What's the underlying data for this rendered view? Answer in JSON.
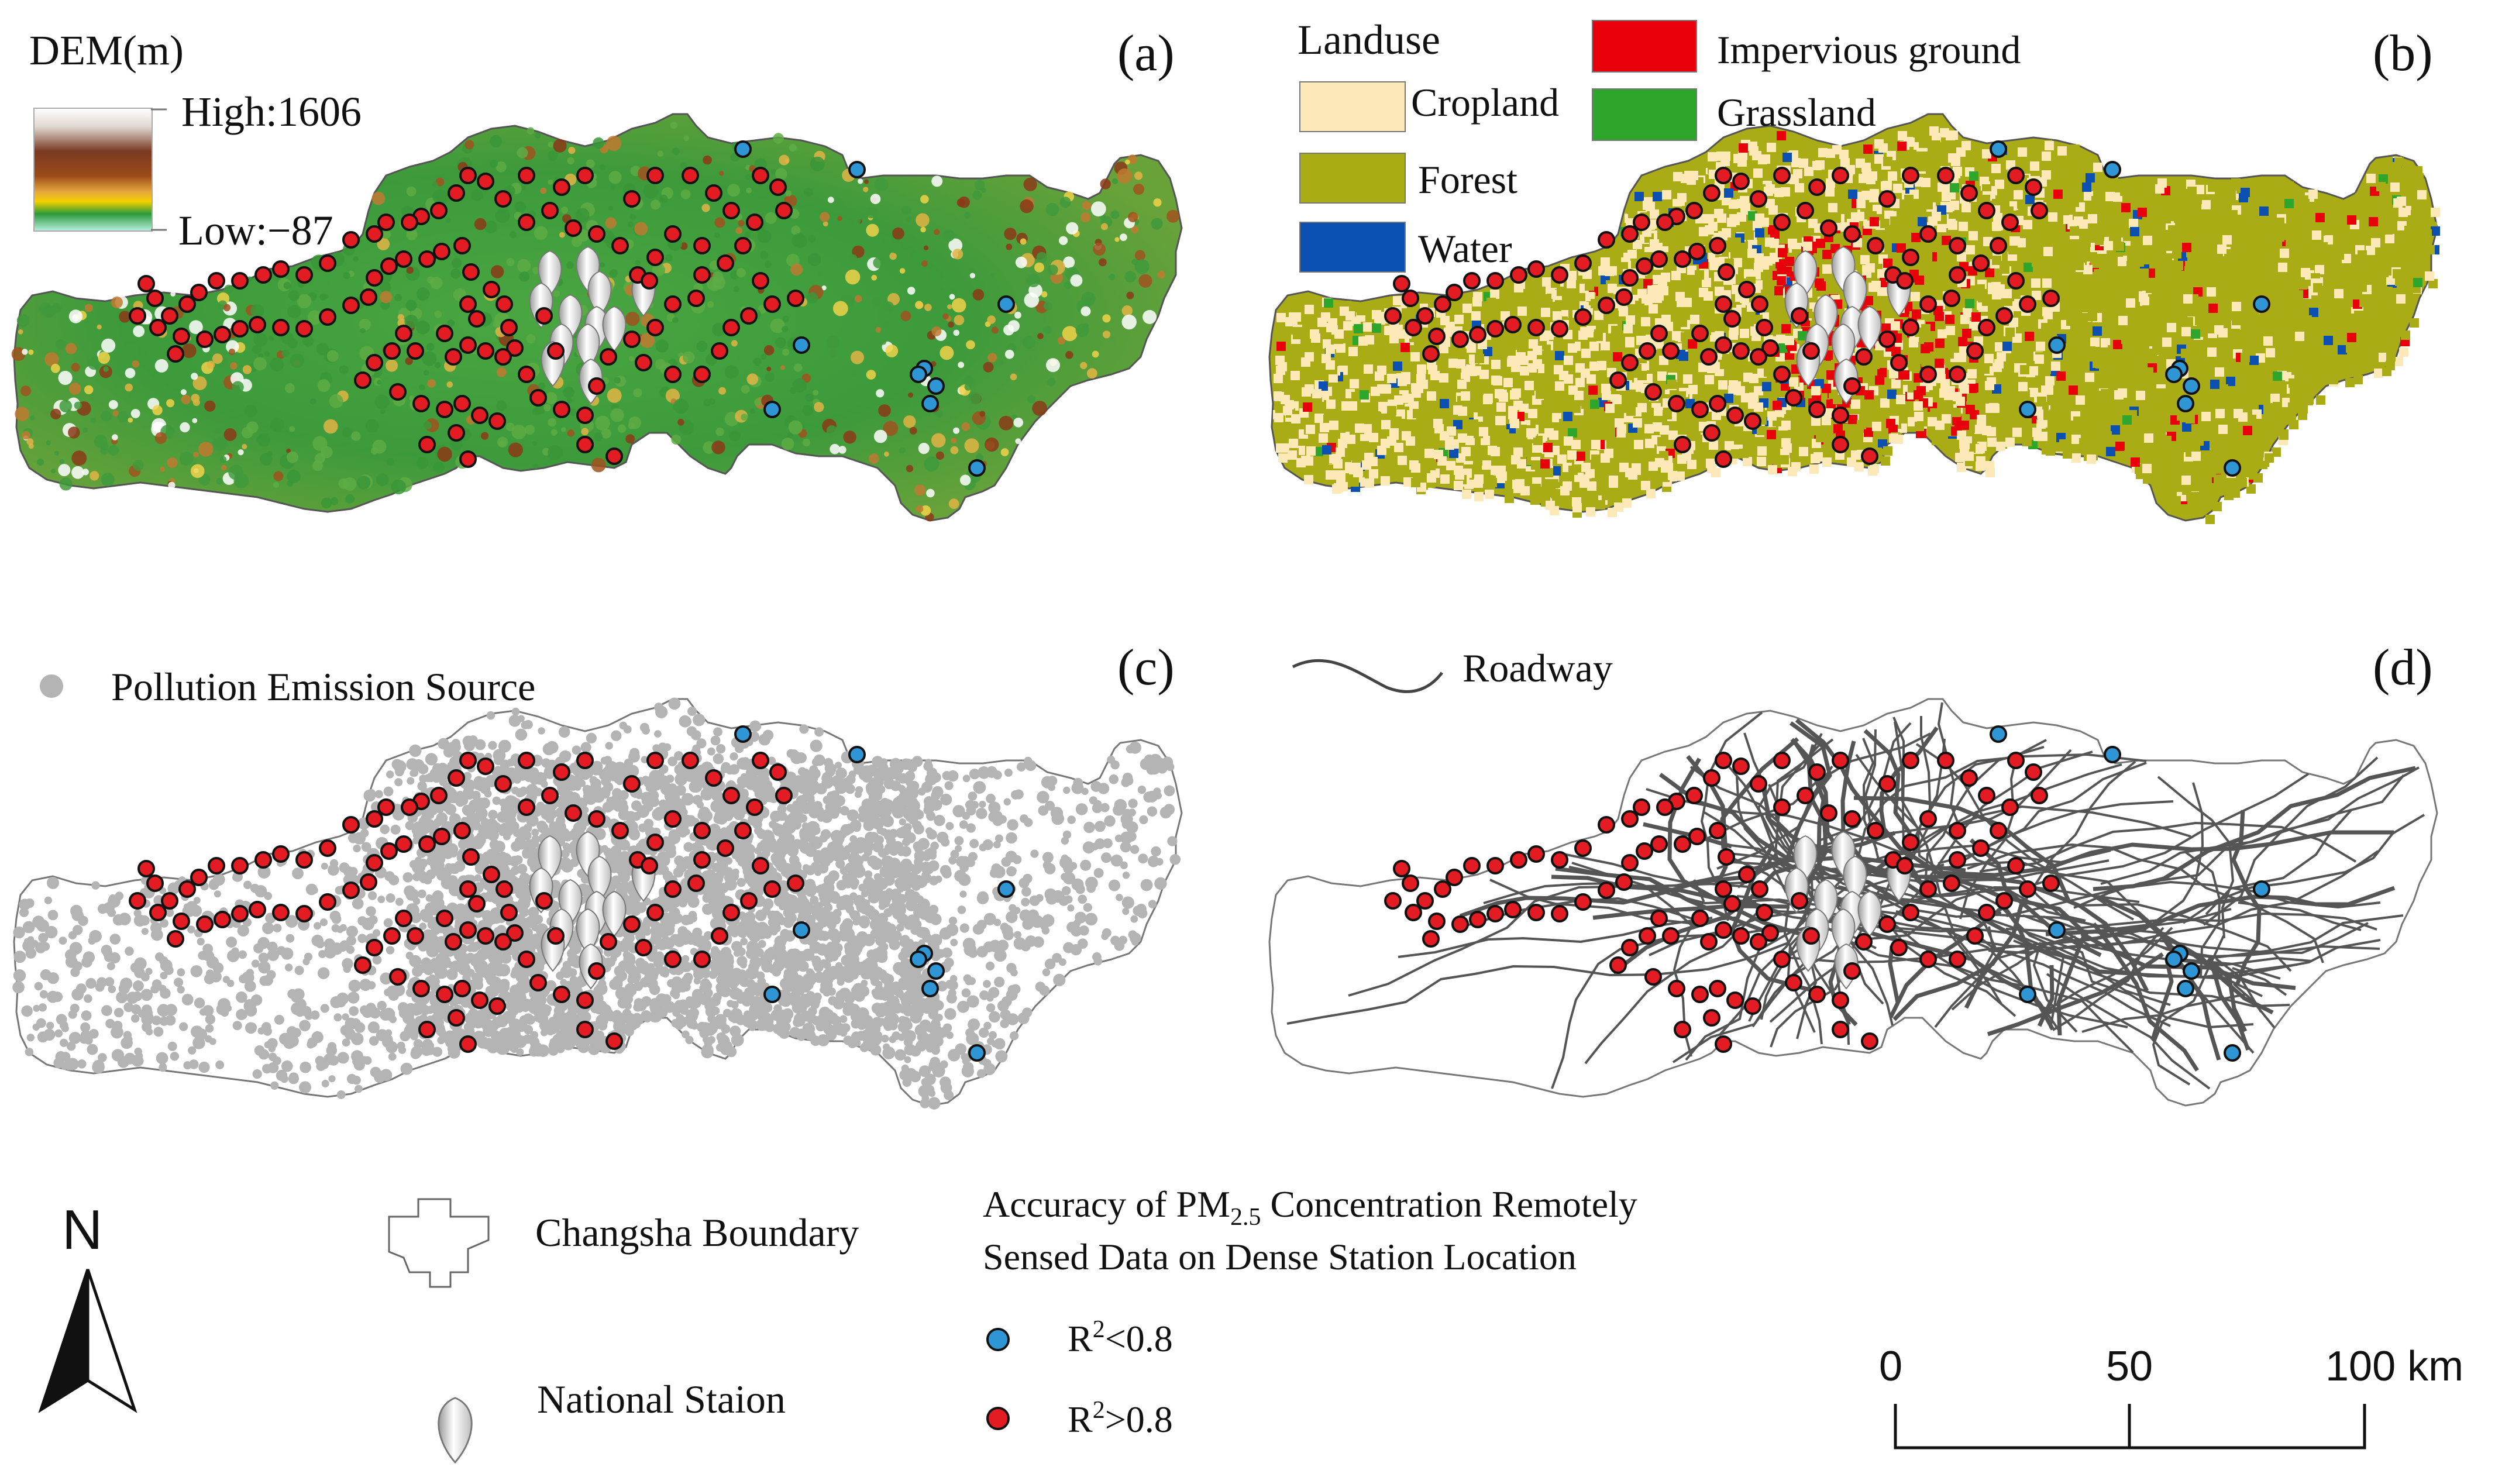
{
  "panels": {
    "a": {
      "label": "(a)",
      "legend_title": "DEM(m)",
      "high": "High:1606",
      "low": "Low:−87"
    },
    "b": {
      "label": "(b)",
      "legend_title": "Landuse",
      "classes": [
        {
          "name": "Cropland",
          "color": "#fde9b8"
        },
        {
          "name": "Forest",
          "color": "#aaac16"
        },
        {
          "name": "Water",
          "color": "#0b4fb0"
        },
        {
          "name": "Impervious ground",
          "color": "#e8000b"
        },
        {
          "name": "Grassland",
          "color": "#2ea62b"
        }
      ]
    },
    "c": {
      "label": "(c)",
      "legend": "Pollution Emission Source"
    },
    "d": {
      "label": "(d)",
      "legend": "Roadway"
    }
  },
  "colors": {
    "dem_gradient": [
      "#ffffff",
      "#e8e2dc",
      "#7a3a22",
      "#9b4b18",
      "#e6a83c",
      "#f4d000",
      "#2b9a3a",
      "#b9f0e0"
    ],
    "pollution_source": "#b4b4b4",
    "road": "#555555",
    "station_low_r2": "#2f96d6",
    "station_high_r2": "#e31b23",
    "boundary": "#555555"
  },
  "legend": {
    "boundary": "Changsha Boundary",
    "national_station": "National Staion",
    "accuracy_title_prefix": "Accuracy of PM",
    "accuracy_title_sub": "2.5",
    "accuracy_title_suffix": " Concentration Remotely",
    "accuracy_title_line2": "Sensed Data on Dense Station Location",
    "low_r2": {
      "prefix": "R",
      "sup": "2",
      "suffix": "<0.8"
    },
    "high_r2": {
      "prefix": "R",
      "sup": "2",
      "suffix": ">0.8"
    },
    "north": "N",
    "scale_ticks": [
      "0",
      "50",
      "100 km"
    ]
  }
}
